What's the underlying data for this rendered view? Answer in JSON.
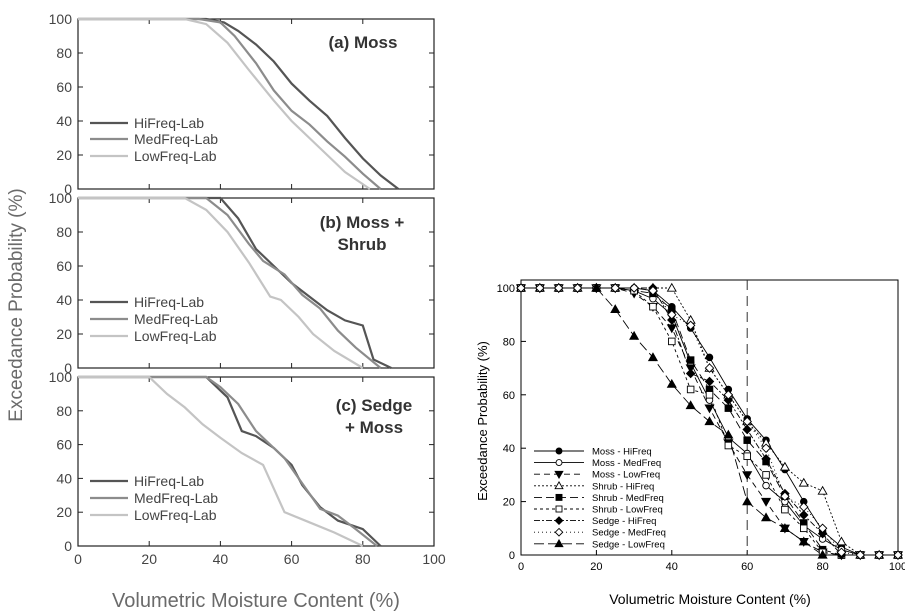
{
  "left_figure": {
    "ylabel": "Exceedance Probability (%)",
    "xlabel": "Volumetric Moisture Content (%)",
    "xticks": [
      0,
      20,
      40,
      60,
      80,
      100
    ],
    "yticks": [
      0,
      20,
      40,
      60,
      80,
      100
    ]
  },
  "right_figure": {
    "ylabel": "Exceedance Probability (%)",
    "xlabel": "Volumetric Moisture Content (%)",
    "xticks": [
      0,
      20,
      40,
      60,
      80,
      100
    ],
    "yticks": [
      0,
      20,
      40,
      60,
      80,
      100
    ]
  },
  "chart_data": [
    {
      "type": "line",
      "title": "(a) Moss",
      "xlim": [
        0,
        100
      ],
      "ylim": [
        0,
        100
      ],
      "xlabel": "",
      "ylabel": "",
      "legend": "left",
      "series": [
        {
          "name": "HiFreq-Lab",
          "color": "#555555",
          "x": [
            0,
            36,
            41,
            45,
            50,
            55,
            60,
            65,
            70,
            75,
            80,
            85,
            90
          ],
          "y": [
            100,
            100,
            98,
            93,
            85,
            75,
            62,
            52,
            43,
            30,
            18,
            8,
            0
          ]
        },
        {
          "name": "MedFreq-Lab",
          "color": "#8c8c8c",
          "x": [
            0,
            34,
            40,
            44,
            50,
            55,
            60,
            65,
            70,
            75,
            80,
            85
          ],
          "y": [
            100,
            100,
            98,
            90,
            74,
            58,
            46,
            38,
            28,
            19,
            9,
            0
          ]
        },
        {
          "name": "LowFreq-Lab",
          "color": "#c4c4c4",
          "x": [
            0,
            30,
            36,
            42,
            48,
            55,
            60,
            65,
            70,
            75,
            82
          ],
          "y": [
            100,
            100,
            97,
            86,
            70,
            52,
            40,
            30,
            20,
            10,
            0
          ]
        }
      ]
    },
    {
      "type": "line",
      "title": "(b) Moss + Shrub",
      "xlim": [
        0,
        100
      ],
      "ylim": [
        0,
        100
      ],
      "xlabel": "",
      "ylabel": "",
      "legend": "left",
      "series": [
        {
          "name": "HiFreq-Lab",
          "color": "#555555",
          "x": [
            0,
            40,
            45,
            50,
            55,
            60,
            65,
            70,
            75,
            80,
            83,
            88
          ],
          "y": [
            100,
            100,
            88,
            70,
            60,
            50,
            42,
            34,
            28,
            25,
            5,
            0
          ]
        },
        {
          "name": "MedFreq-Lab",
          "color": "#8c8c8c",
          "x": [
            0,
            36,
            42,
            48,
            52,
            58,
            63,
            68,
            73,
            78,
            85
          ],
          "y": [
            100,
            100,
            90,
            73,
            63,
            55,
            43,
            35,
            22,
            12,
            0
          ]
        },
        {
          "name": "LowFreq-Lab",
          "color": "#c4c4c4",
          "x": [
            0,
            30,
            36,
            42,
            48,
            54,
            57,
            62,
            66,
            72,
            80
          ],
          "y": [
            100,
            100,
            93,
            80,
            62,
            42,
            40,
            30,
            20,
            10,
            0
          ]
        }
      ]
    },
    {
      "type": "line",
      "title": "(c) Sedge + Moss",
      "xlim": [
        0,
        100
      ],
      "ylim": [
        0,
        100
      ],
      "xlabel": "",
      "ylabel": "",
      "legend": "left",
      "series": [
        {
          "name": "HiFreq-Lab",
          "color": "#555555",
          "x": [
            0,
            36,
            42,
            46,
            50,
            55,
            60,
            63,
            68,
            73,
            80,
            85
          ],
          "y": [
            100,
            100,
            88,
            68,
            65,
            58,
            48,
            36,
            23,
            15,
            10,
            0
          ]
        },
        {
          "name": "MedFreq-Lab",
          "color": "#8c8c8c",
          "x": [
            0,
            36,
            40,
            45,
            50,
            55,
            58,
            62,
            68,
            73,
            78,
            84
          ],
          "y": [
            100,
            100,
            94,
            84,
            68,
            58,
            52,
            40,
            22,
            18,
            10,
            0
          ]
        },
        {
          "name": "LowFreq-Lab",
          "color": "#c4c4c4",
          "x": [
            0,
            20,
            25,
            30,
            35,
            40,
            46,
            52,
            58,
            65,
            72,
            80
          ],
          "y": [
            100,
            100,
            90,
            82,
            72,
            64,
            55,
            48,
            20,
            14,
            8,
            0
          ]
        }
      ]
    },
    {
      "type": "line",
      "title": "",
      "xlim": [
        0,
        100
      ],
      "ylim": [
        0,
        100
      ],
      "xlabel": "Volumetric Moisture Content (%)",
      "ylabel": "Exceedance Probability (%)",
      "vline": 60,
      "legend": "bottom-left",
      "series": [
        {
          "name": "Moss - HiFreq",
          "marker": "circle",
          "filled": true,
          "dash": "",
          "x": [
            0,
            5,
            10,
            15,
            20,
            25,
            30,
            35,
            40,
            45,
            50,
            55,
            60,
            65,
            70,
            75,
            80,
            85,
            90,
            95,
            100
          ],
          "y": [
            100,
            100,
            100,
            100,
            100,
            100,
            100,
            99,
            93,
            85,
            74,
            62,
            51,
            43,
            32,
            20,
            9,
            3,
            0,
            0,
            0
          ]
        },
        {
          "name": "Moss - MedFreq",
          "marker": "circle",
          "filled": false,
          "dash": "",
          "x": [
            0,
            5,
            10,
            15,
            20,
            25,
            30,
            35,
            40,
            45,
            50,
            55,
            60,
            65,
            70,
            75,
            80,
            85,
            90,
            95,
            100
          ],
          "y": [
            100,
            100,
            100,
            100,
            100,
            100,
            99,
            96,
            90,
            72,
            58,
            44,
            38,
            26,
            20,
            11,
            6,
            2,
            0,
            0,
            0
          ]
        },
        {
          "name": "Moss - LowFreq",
          "marker": "tri-down",
          "filled": true,
          "dash": "6,4",
          "x": [
            0,
            5,
            10,
            15,
            20,
            25,
            30,
            35,
            40,
            45,
            50,
            55,
            60,
            65,
            70,
            75,
            80,
            85,
            90,
            95,
            100
          ],
          "y": [
            100,
            100,
            100,
            100,
            100,
            100,
            98,
            93,
            85,
            70,
            55,
            42,
            30,
            20,
            10,
            5,
            1,
            0,
            0,
            0,
            0
          ]
        },
        {
          "name": "Shrub - HiFreq",
          "marker": "tri-up",
          "filled": false,
          "dash": "2,2",
          "x": [
            0,
            5,
            10,
            15,
            20,
            25,
            30,
            35,
            40,
            45,
            50,
            55,
            60,
            65,
            70,
            75,
            80,
            85,
            90,
            95,
            100
          ],
          "y": [
            100,
            100,
            100,
            100,
            100,
            100,
            100,
            100,
            100,
            88,
            70,
            60,
            50,
            42,
            33,
            27,
            24,
            5,
            0,
            0,
            0
          ]
        },
        {
          "name": "Shrub - MedFreq",
          "marker": "square",
          "filled": true,
          "dash": "8,4",
          "x": [
            0,
            5,
            10,
            15,
            20,
            25,
            30,
            35,
            40,
            45,
            50,
            55,
            60,
            65,
            70,
            75,
            80,
            85,
            90,
            95,
            100
          ],
          "y": [
            100,
            100,
            100,
            100,
            100,
            100,
            99,
            98,
            92,
            73,
            62,
            55,
            43,
            35,
            22,
            12,
            2,
            0,
            0,
            0,
            0
          ]
        },
        {
          "name": "Shrub - LowFreq",
          "marker": "square",
          "filled": false,
          "dash": "3,3",
          "x": [
            0,
            5,
            10,
            15,
            20,
            25,
            30,
            35,
            40,
            45,
            50,
            55,
            60,
            65,
            70,
            75,
            80,
            85,
            90,
            95,
            100
          ],
          "y": [
            100,
            100,
            100,
            100,
            100,
            100,
            99,
            93,
            80,
            62,
            60,
            41,
            37,
            30,
            17,
            10,
            1,
            0,
            0,
            0,
            0
          ]
        },
        {
          "name": "Sedge - HiFreq",
          "marker": "diamond",
          "filled": true,
          "dash": "6,2,2,2",
          "x": [
            0,
            5,
            10,
            15,
            20,
            25,
            30,
            35,
            40,
            45,
            50,
            55,
            60,
            65,
            70,
            75,
            80,
            85,
            90,
            95,
            100
          ],
          "y": [
            100,
            100,
            100,
            100,
            100,
            100,
            100,
            100,
            88,
            68,
            65,
            58,
            47,
            36,
            23,
            15,
            8,
            0,
            0,
            0,
            0
          ]
        },
        {
          "name": "Sedge - MedFreq",
          "marker": "diamond",
          "filled": false,
          "dash": "1,3",
          "x": [
            0,
            5,
            10,
            15,
            20,
            25,
            30,
            35,
            40,
            45,
            50,
            55,
            60,
            65,
            70,
            75,
            80,
            85,
            90,
            95,
            100
          ],
          "y": [
            100,
            100,
            100,
            100,
            100,
            100,
            100,
            99,
            90,
            86,
            70,
            60,
            50,
            40,
            22,
            18,
            10,
            1,
            0,
            0,
            0
          ]
        },
        {
          "name": "Sedge - LowFreq",
          "marker": "tri-up",
          "filled": true,
          "dash": "10,4",
          "x": [
            20,
            25,
            30,
            35,
            40,
            45,
            50,
            55,
            60,
            65,
            70,
            75,
            80
          ],
          "y": [
            100,
            92,
            82,
            74,
            64,
            56,
            50,
            45,
            20,
            14,
            10,
            5,
            0
          ]
        }
      ]
    }
  ]
}
